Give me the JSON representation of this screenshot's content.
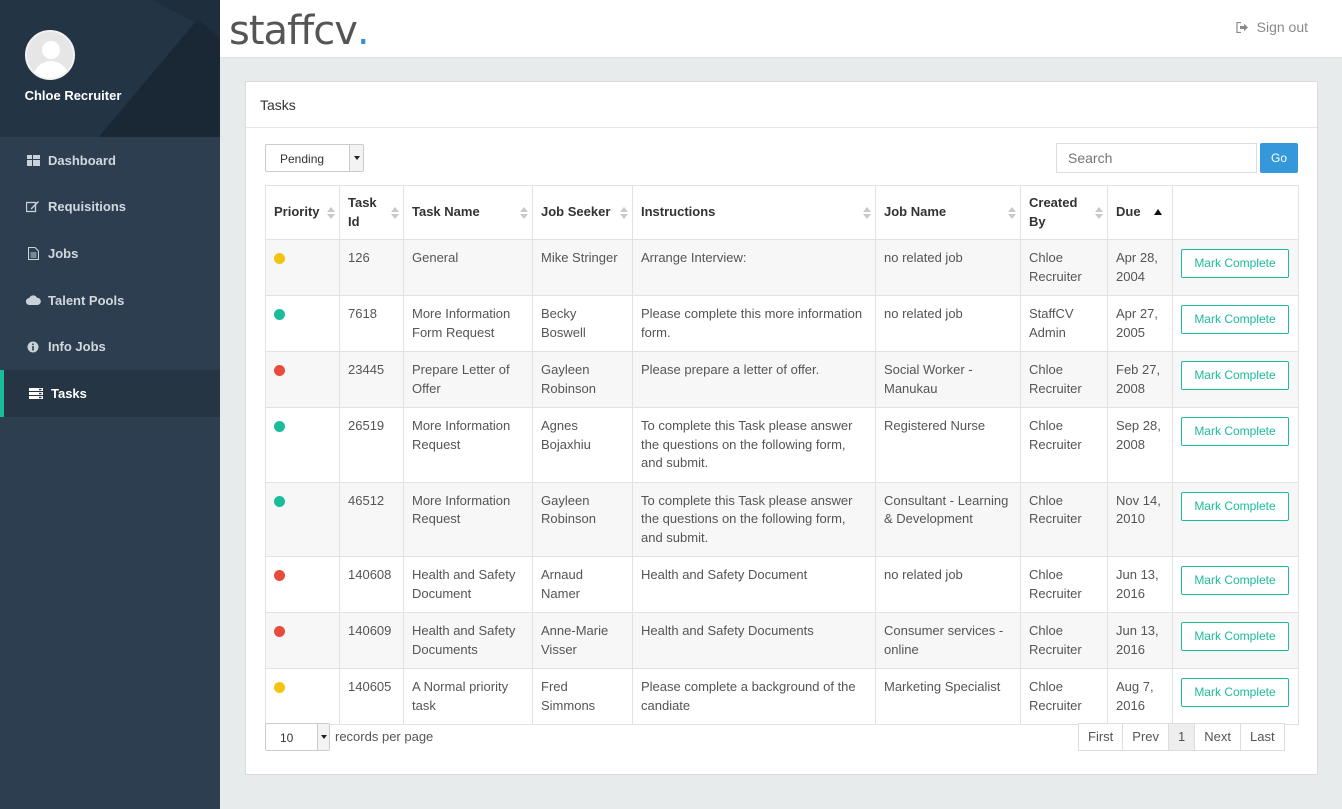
{
  "app": {
    "logo_text": "staffcv",
    "logo_dot": "."
  },
  "user": {
    "name": "Chloe Recruiter"
  },
  "header": {
    "signout_label": "Sign out"
  },
  "sidebar": {
    "items": [
      {
        "label": "Dashboard",
        "icon": "dashboard-icon"
      },
      {
        "label": "Requisitions",
        "icon": "edit-icon"
      },
      {
        "label": "Jobs",
        "icon": "document-icon"
      },
      {
        "label": "Talent Pools",
        "icon": "cloud-icon"
      },
      {
        "label": "Info Jobs",
        "icon": "info-icon"
      },
      {
        "label": "Tasks",
        "icon": "tasks-icon",
        "active": true
      }
    ]
  },
  "panel": {
    "title": "Tasks",
    "filter_value": "Pending",
    "search_placeholder": "Search",
    "go_label": "Go"
  },
  "table": {
    "columns": [
      "Priority",
      "Task Id",
      "Task Name",
      "Job Seeker",
      "Instructions",
      "Job Name",
      "Created By",
      "Due"
    ],
    "action_label": "Mark Complete",
    "rows": [
      {
        "priority": "medium",
        "priority_color": "#f1c40f",
        "id": "126",
        "name": "General",
        "seeker": "Mike Stringer",
        "instructions": "Arrange Interview:",
        "job": "no related job",
        "created_by": "Chloe Recruiter",
        "due": "Apr 28, 2004"
      },
      {
        "priority": "low",
        "priority_color": "#1abc9c",
        "id": "7618",
        "name": "More Information Form Request",
        "seeker": "Becky Boswell",
        "instructions": "Please complete this more information form.",
        "job": "no related job",
        "created_by": "StaffCV Admin",
        "due": "Apr 27, 2005"
      },
      {
        "priority": "high",
        "priority_color": "#e74c3c",
        "id": "23445",
        "name": "Prepare Letter of Offer",
        "seeker": "Gayleen Robinson",
        "instructions": "Please prepare a letter of offer.",
        "job": "Social Worker - Manukau",
        "created_by": "Chloe Recruiter",
        "due": "Feb 27, 2008"
      },
      {
        "priority": "low",
        "priority_color": "#1abc9c",
        "id": "26519",
        "name": "More Information Request",
        "seeker": "Agnes Bojaxhiu",
        "instructions": "To complete this Task please answer the questions on the following form, and submit.",
        "job": "Registered Nurse",
        "created_by": "Chloe Recruiter",
        "due": "Sep 28, 2008"
      },
      {
        "priority": "low",
        "priority_color": "#1abc9c",
        "id": "46512",
        "name": "More Information Request",
        "seeker": "Gayleen Robinson",
        "instructions": "To complete this Task please answer the questions on the following form, and submit.",
        "job": "Consultant - Learning & Development",
        "created_by": "Chloe Recruiter",
        "due": "Nov 14, 2010"
      },
      {
        "priority": "high",
        "priority_color": "#e74c3c",
        "id": "140608",
        "name": "Health and Safety Document",
        "seeker": "Arnaud Namer",
        "instructions": "Health and Safety Document",
        "job": "no related job",
        "created_by": "Chloe Recruiter",
        "due": "Jun 13, 2016"
      },
      {
        "priority": "high",
        "priority_color": "#e74c3c",
        "id": "140609",
        "name": "Health and Safety Documents",
        "seeker": "Anne-Marie Visser",
        "instructions": "Health and Safety Documents",
        "job": "Consumer services - online",
        "created_by": "Chloe Recruiter",
        "due": "Jun 13, 2016"
      },
      {
        "priority": "medium",
        "priority_color": "#f1c40f",
        "id": "140605",
        "name": "A Normal priority task",
        "seeker": "Fred Simmons",
        "instructions": "Please complete a background of the candiate",
        "job": "Marketing Specialist",
        "created_by": "Chloe Recruiter",
        "due": "Aug 7, 2016"
      }
    ]
  },
  "footer": {
    "per_page_value": "10",
    "per_page_label": "records per page",
    "pager": [
      "First",
      "Prev",
      "1",
      "Next",
      "Last"
    ],
    "current_page": "1"
  }
}
